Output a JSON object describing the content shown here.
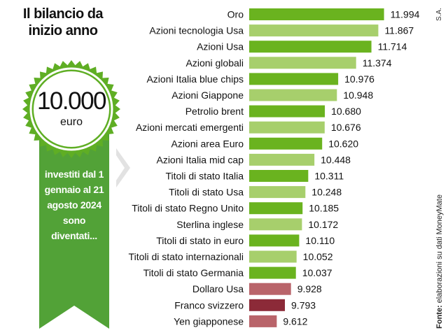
{
  "title": "Il bilancio da inizio anno",
  "badge": {
    "amount": "10.000",
    "unit": "euro"
  },
  "ribbon_text": "investiti dal 1 gennaio al 21 agosto 2024 sono diventati...",
  "source": {
    "label": "Fonte:",
    "text": " elaborazioni su dati MoneyMate"
  },
  "credit": "S.A.",
  "colors": {
    "green_dark": "#6ab31f",
    "green_light": "#a7cf6c",
    "red_light": "#b9646a",
    "red_dark": "#8c2a38",
    "badge_green": "#5fae24",
    "ribbon_green": "#52a237",
    "chevron_grey": "#e2e2e2"
  },
  "chart_data": {
    "type": "bar",
    "orientation": "horizontal",
    "categories": [
      "Oro",
      "Azioni tecnologia Usa",
      "Azioni Usa",
      "Azioni globali",
      "Azioni Italia blue chips",
      "Azioni Giappone",
      "Petrolio brent",
      "Azioni mercati emergenti",
      "Azioni area Euro",
      "Azioni Italia mid cap",
      "Titoli di stato Italia",
      "Titoli di stato Usa",
      "Titoli di stato Regno Unito",
      "Sterlina inglese",
      "Titoli di stato in euro",
      "Titoli di stato internazionali",
      "Titoli di stato Germania",
      "Dollaro Usa",
      "Franco svizzero",
      "Yen giapponese"
    ],
    "values": [
      11994,
      11867,
      11714,
      11374,
      10976,
      10948,
      10680,
      10676,
      10620,
      10448,
      10311,
      10248,
      10185,
      10172,
      10110,
      10052,
      10037,
      9928,
      9793,
      9612
    ],
    "value_labels": [
      "11.994",
      "11.867",
      "11.714",
      "11.374",
      "10.976",
      "10.948",
      "10.680",
      "10.676",
      "10.620",
      "10.448",
      "10.311",
      "10.248",
      "10.185",
      "10.172",
      "10.110",
      "10.052",
      "10.037",
      "9.928",
      "9.793",
      "9.612"
    ],
    "bar_colors": [
      "green_dark",
      "green_light",
      "green_dark",
      "green_light",
      "green_dark",
      "green_light",
      "green_dark",
      "green_light",
      "green_dark",
      "green_light",
      "green_dark",
      "green_light",
      "green_dark",
      "green_light",
      "green_dark",
      "green_light",
      "green_dark",
      "red_light",
      "red_dark",
      "red_light"
    ],
    "xlim": [
      9000,
      12000
    ],
    "grid": false,
    "legend": "none"
  }
}
